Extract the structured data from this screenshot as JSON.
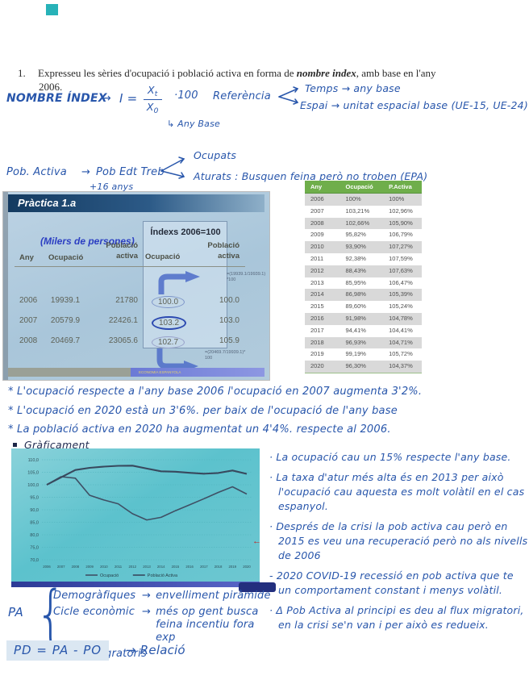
{
  "question": {
    "number": "1.",
    "text_before": "Expresseu les sèries d'ocupació i població activa en forma de ",
    "text_bold": "nombre index",
    "text_after": ", amb base en l'any",
    "line2": "2006."
  },
  "formula": {
    "title": "NOMBRE ÍNDEX",
    "arrow": "→",
    "lhs": "I =",
    "num_base": "X",
    "num_sub": "t",
    "den_base": "X",
    "den_sub": "0",
    "times": "·100",
    "den_note": "↳ Any Base",
    "referencia": "Referència",
    "branch_top": "Temps → any base",
    "branch_bottom": "Espai → unitat espacial base (UE-15, UE-24)"
  },
  "pob_activa": {
    "lead": "Pob. Activa",
    "arrow": "→",
    "mid": "Pob Edt Treb",
    "mid_note": "+16 anys",
    "branch_top": "Ocupats",
    "branch_bottom": "Aturats : Busquen feina però no troben (EPA)"
  },
  "slide": {
    "title": "Pràctica 1.a",
    "units_label": "(Milers de persones)",
    "index_header": "Índexs 2006=100",
    "col_any": "Any",
    "col_ocupacio": "Ocupació",
    "col_poblacio": "Població",
    "col_activa": "activa",
    "col_ocupacio2": "Ocupació",
    "col_poblacio2": "Població",
    "col_activa2": "activa",
    "formula_top_1": "=(19939.1/19939.1)",
    "formula_top_2": "*100",
    "formula_bottom_1": "=(20469.7/19939.1)*",
    "formula_bottom_2": "100",
    "rows": [
      [
        "2006",
        "19939.1",
        "21780",
        "100.0",
        "100.0"
      ],
      [
        "2007",
        "20579.9",
        "22426.1",
        "103.2",
        "103.0"
      ],
      [
        "2008",
        "20469.7",
        "23065.6",
        "102.7",
        "105.9"
      ]
    ],
    "footer_text": "ECONOMIA ESPANYOLA"
  },
  "index_table": {
    "headers": [
      "Any",
      "Ocupació",
      "P.Activa"
    ],
    "rows": [
      [
        "2006",
        "100%",
        "100%"
      ],
      [
        "2007",
        "103,21%",
        "102,96%"
      ],
      [
        "2008",
        "102,66%",
        "105,90%"
      ],
      [
        "2009",
        "95,82%",
        "106,79%"
      ],
      [
        "2010",
        "93,90%",
        "107,27%"
      ],
      [
        "2011",
        "92,38%",
        "107,59%"
      ],
      [
        "2012",
        "88,43%",
        "107,63%"
      ],
      [
        "2013",
        "85,95%",
        "106,47%"
      ],
      [
        "2014",
        "86,98%",
        "105,39%"
      ],
      [
        "2015",
        "89,60%",
        "105,24%"
      ],
      [
        "2016",
        "91,98%",
        "104,78%"
      ],
      [
        "2017",
        "94,41%",
        "104,41%"
      ],
      [
        "2018",
        "96,93%",
        "104,71%"
      ],
      [
        "2019",
        "99,19%",
        "105,72%"
      ],
      [
        "2020",
        "96,30%",
        "104,37%"
      ]
    ]
  },
  "observations": [
    "* L'ocupació respecte a l'any base 2006 l'ocupació en 2007 augmenta 3'2%.",
    "* L'ocupació en 2020 està un 3'6%. per baix de l'ocupació de l'any base",
    "* La població activa en 2020 ha augmentat un 4'4%. respecte al 2006."
  ],
  "chart_section": {
    "heading": "Gràficament"
  },
  "chart_data": {
    "type": "line",
    "x": [
      2006,
      2007,
      2008,
      2009,
      2010,
      2011,
      2012,
      2013,
      2014,
      2015,
      2016,
      2017,
      2018,
      2019,
      2020
    ],
    "series": [
      {
        "name": "Ocupació",
        "values": [
          100,
          103.21,
          102.66,
          95.82,
          93.9,
          92.38,
          88.43,
          85.95,
          86.98,
          89.6,
          91.98,
          94.41,
          96.93,
          99.19,
          96.3
        ]
      },
      {
        "name": "Població Activa",
        "values": [
          100,
          102.96,
          105.9,
          106.79,
          107.27,
          107.59,
          107.63,
          106.47,
          105.39,
          105.24,
          104.78,
          104.41,
          104.71,
          105.72,
          104.37
        ]
      }
    ],
    "ylim": [
      70,
      110
    ],
    "yticks": [
      110,
      105,
      100,
      95,
      90,
      85,
      80,
      75,
      70
    ],
    "legend": [
      "Ocupació",
      "Població Activa"
    ],
    "grid": true,
    "legend_position": "bottom"
  },
  "red_mark": "←",
  "right_notes": [
    "· La ocupació cau un 15% respecte l'any base.",
    "· La taxa d'atur més alta és en 2013 per això l'ocupació cau aquesta es molt volàtil en el cas espanyol.",
    "· Després de la crisi la pob activa cau però en 2015 es veu una recuperació però no als nivells de 2006",
    "- 2020 COVID-19 recessió en pob activa que te un comportament constant i menys volàtil.",
    "· Δ Pob Activa al principi es deu al flux migratori, en la crisi se'n van i per això es redueix."
  ],
  "pa_block": {
    "label": "PA",
    "brace": "{",
    "item1": "Demogràfiques",
    "item1_arrow": "→",
    "item1_detail": "envelliment piràmide",
    "item2": "Cicle econòmic",
    "item2_arrow": "→",
    "item2_detail": "més op gent busca feina  incentiu fora exp",
    "item3": "Fluxes migratoris"
  },
  "pd_formula": {
    "highlight": "PD = PA - PO",
    "arrow": "→",
    "label": "Relació"
  },
  "colors": {
    "accent_teal": "#27b2b8",
    "ink_blue": "#2856ab",
    "table_green": "#6fae4b",
    "chart_teal": "#5cc2cd"
  }
}
